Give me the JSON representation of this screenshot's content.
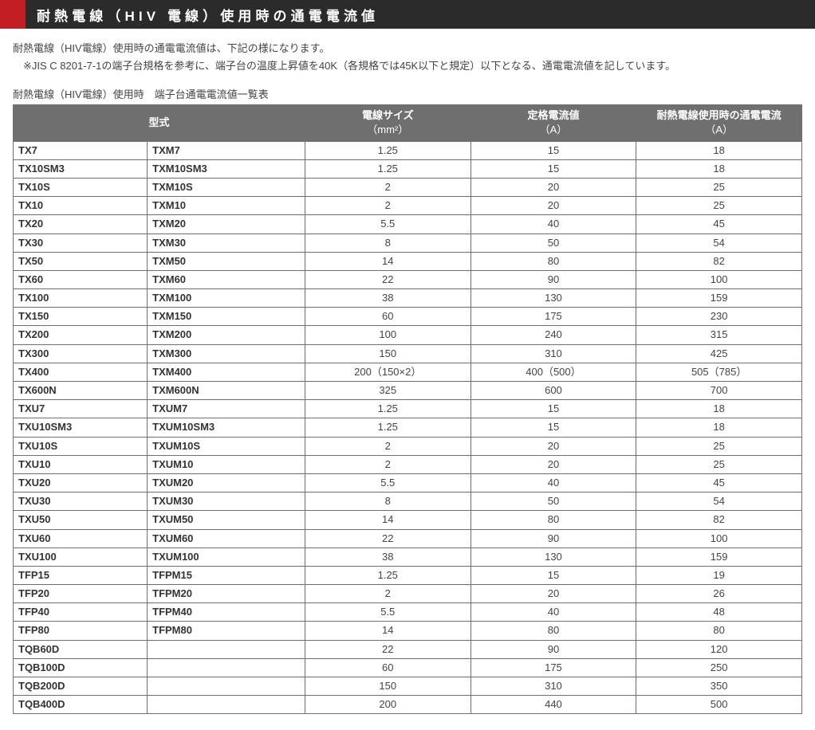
{
  "header": {
    "title": "耐熱電線（HIV 電線）使用時の通電電流値"
  },
  "intro": {
    "line1": "耐熱電線（HIV電線）使用時の通電電流値は、下記の様になります。",
    "note": "※JIS C 8201-7-1の端子台規格を参考に、端子台の温度上昇値を40K（各規格では45K以下と規定）以下となる、通電電流値を記しています。"
  },
  "table": {
    "caption": "耐熱電線（HIV電線）使用時　端子台通電電流値一覧表",
    "columns": {
      "model": "型式",
      "wire_size": "電線サイズ",
      "wire_size_unit": "（mm²）",
      "rated_current": "定格電流値",
      "rated_current_unit": "（A）",
      "heat_current": "耐熱電線使用時の通電電流",
      "heat_current_unit": "（A）"
    },
    "rows": [
      {
        "a": "TX7",
        "b": "TXM7",
        "wire": "1.25",
        "rated": "15",
        "heat": "18"
      },
      {
        "a": "TX10SM3",
        "b": "TXM10SM3",
        "wire": "1.25",
        "rated": "15",
        "heat": "18"
      },
      {
        "a": "TX10S",
        "b": "TXM10S",
        "wire": "2",
        "rated": "20",
        "heat": "25"
      },
      {
        "a": "TX10",
        "b": "TXM10",
        "wire": "2",
        "rated": "20",
        "heat": "25"
      },
      {
        "a": "TX20",
        "b": "TXM20",
        "wire": "5.5",
        "rated": "40",
        "heat": "45"
      },
      {
        "a": "TX30",
        "b": "TXM30",
        "wire": "8",
        "rated": "50",
        "heat": "54"
      },
      {
        "a": "TX50",
        "b": "TXM50",
        "wire": "14",
        "rated": "80",
        "heat": "82"
      },
      {
        "a": "TX60",
        "b": "TXM60",
        "wire": "22",
        "rated": "90",
        "heat": "100"
      },
      {
        "a": "TX100",
        "b": "TXM100",
        "wire": "38",
        "rated": "130",
        "heat": "159"
      },
      {
        "a": "TX150",
        "b": "TXM150",
        "wire": "60",
        "rated": "175",
        "heat": "230"
      },
      {
        "a": "TX200",
        "b": "TXM200",
        "wire": "100",
        "rated": "240",
        "heat": "315"
      },
      {
        "a": "TX300",
        "b": "TXM300",
        "wire": "150",
        "rated": "310",
        "heat": "425"
      },
      {
        "a": "TX400",
        "b": "TXM400",
        "wire": "200（150×2）",
        "rated": "400（500）",
        "heat": "505（785）"
      },
      {
        "a": "TX600N",
        "b": "TXM600N",
        "wire": "325",
        "rated": "600",
        "heat": "700"
      },
      {
        "a": "TXU7",
        "b": "TXUM7",
        "wire": "1.25",
        "rated": "15",
        "heat": "18"
      },
      {
        "a": "TXU10SM3",
        "b": "TXUM10SM3",
        "wire": "1.25",
        "rated": "15",
        "heat": "18"
      },
      {
        "a": "TXU10S",
        "b": "TXUM10S",
        "wire": "2",
        "rated": "20",
        "heat": "25"
      },
      {
        "a": "TXU10",
        "b": "TXUM10",
        "wire": "2",
        "rated": "20",
        "heat": "25"
      },
      {
        "a": "TXU20",
        "b": "TXUM20",
        "wire": "5.5",
        "rated": "40",
        "heat": "45"
      },
      {
        "a": "TXU30",
        "b": "TXUM30",
        "wire": "8",
        "rated": "50",
        "heat": "54"
      },
      {
        "a": "TXU50",
        "b": "TXUM50",
        "wire": "14",
        "rated": "80",
        "heat": "82"
      },
      {
        "a": "TXU60",
        "b": "TXUM60",
        "wire": "22",
        "rated": "90",
        "heat": "100"
      },
      {
        "a": "TXU100",
        "b": "TXUM100",
        "wire": "38",
        "rated": "130",
        "heat": "159"
      },
      {
        "a": "TFP15",
        "b": "TFPM15",
        "wire": "1.25",
        "rated": "15",
        "heat": "19"
      },
      {
        "a": "TFP20",
        "b": "TFPM20",
        "wire": "2",
        "rated": "20",
        "heat": "26"
      },
      {
        "a": "TFP40",
        "b": "TFPM40",
        "wire": "5.5",
        "rated": "40",
        "heat": "48"
      },
      {
        "a": "TFP80",
        "b": "TFPM80",
        "wire": "14",
        "rated": "80",
        "heat": "80"
      },
      {
        "a": "TQB60D",
        "b": "",
        "wire": "22",
        "rated": "90",
        "heat": "120"
      },
      {
        "a": "TQB100D",
        "b": "",
        "wire": "60",
        "rated": "175",
        "heat": "250"
      },
      {
        "a": "TQB200D",
        "b": "",
        "wire": "150",
        "rated": "310",
        "heat": "350"
      },
      {
        "a": "TQB400D",
        "b": "",
        "wire": "200",
        "rated": "440",
        "heat": "500"
      }
    ]
  },
  "style": {
    "header_bg": "#2b2b2b",
    "accent_color": "#c41e25",
    "header_text_color": "#ffffff",
    "table_header_bg": "#6f6f6f",
    "table_header_text": "#ffffff",
    "border_color": "#6f6f6f",
    "body_text_color": "#333333"
  }
}
